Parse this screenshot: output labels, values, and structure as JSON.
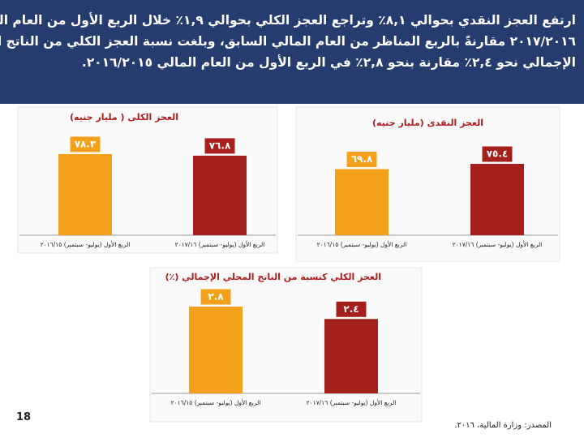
{
  "header": {
    "lines": [
      "ارتفع العجز النقدي بحوالي ٨,١٪ وتراجع العجز الكلي بحوالي ١,٩٪ خلال الربع الأول من العام المـــالي",
      "٢٠١٧/٢٠١٦ مقارنةً بالربع المناظر من العام المالي السابق، وبلغت نسبة العجز الكلي من الناتج المحلي",
      "الإجمالي نحو ٢,٤٪ مقارنة بنحو ٢,٨٪ في الربع الأول من العام المالي ٢٠١٦/٢٠١٥."
    ]
  },
  "chart_data": [
    {
      "type": "bar",
      "title": "العجز الكلى ( مليار جنيه)",
      "categories": [
        "الربع الأول (يوليو- سبتمبر) ٢٠١٦/١٥",
        "الربع الأول (يوليو- سبتمبر) ٢٠١٧/١٦"
      ],
      "values": [
        78.3,
        76.8
      ],
      "value_labels": [
        "٧٨.٣",
        "٧٦.٨"
      ],
      "colors": [
        "#f5a01a",
        "#a51f1c"
      ]
    },
    {
      "type": "bar",
      "title": "العجز النقدى (مليار جنيه)",
      "categories": [
        "الربع الأول (يوليو- سبتمبر) ٢٠١٦/١٥",
        "الربع الأول (يوليو- سبتمبر) ٢٠١٧/١٦"
      ],
      "values": [
        69.8,
        75.4
      ],
      "value_labels": [
        "٦٩.٨",
        "٧٥.٤"
      ],
      "colors": [
        "#f5a01a",
        "#a51f1c"
      ]
    },
    {
      "type": "bar",
      "title": "العجز الكلي كنسبة من الناتج المحلي الإجمالي (٪)",
      "categories": [
        "الربع الأول (يوليو- سبتمبر) ٢٠١٦/١٥",
        "الربع الأول (يوليو- سبتمبر) ٢٠١٧/١٦"
      ],
      "values": [
        2.8,
        2.4
      ],
      "value_labels": [
        "٢.٨",
        "٢.٤"
      ],
      "colors": [
        "#f5a01a",
        "#a51f1c"
      ]
    }
  ],
  "footer": {
    "source": "المصدر: وزارة المالية، ٢٠١٦.",
    "page": "18"
  }
}
